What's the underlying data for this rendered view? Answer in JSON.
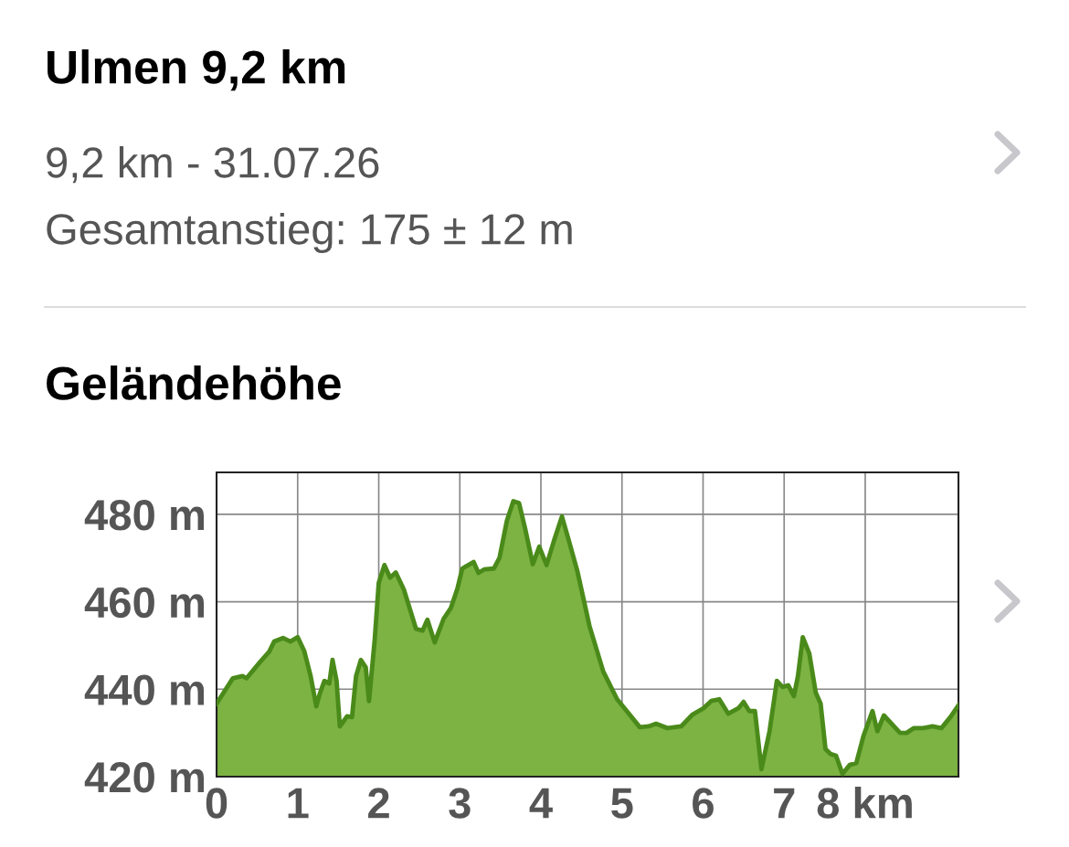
{
  "chart_data": {
    "type": "area",
    "title": "Ulmen 9,2 km",
    "subtitle": "9,2 km - 31.07.26",
    "annotations": [
      "Gesamtanstieg: 175 ± 12 m",
      "Geländehöhe"
    ],
    "x": [
      0,
      0.2,
      0.32,
      0.37,
      0.54,
      0.65,
      0.71,
      0.82,
      0.91,
      1.0,
      1.08,
      1.16,
      1.23,
      1.27,
      1.33,
      1.39,
      1.43,
      1.48,
      1.52,
      1.61,
      1.67,
      1.72,
      1.78,
      1.84,
      1.88,
      1.95,
      2.0,
      2.07,
      2.14,
      2.21,
      2.31,
      2.46,
      2.54,
      2.6,
      2.69,
      2.8,
      2.89,
      2.97,
      3.03,
      3.17,
      3.23,
      3.3,
      3.42,
      3.49,
      3.58,
      3.66,
      3.73,
      3.81,
      3.9,
      3.98,
      4.07,
      4.16,
      4.26,
      4.34,
      4.45,
      4.6,
      4.77,
      4.94,
      5.22,
      5.33,
      5.42,
      5.56,
      5.73,
      5.87,
      6.01,
      6.1,
      6.2,
      6.31,
      6.44,
      6.5,
      6.57,
      6.64,
      6.72,
      6.82,
      6.91,
      6.98,
      7.05,
      7.12,
      7.17,
      7.23,
      7.31,
      7.39,
      7.45,
      7.51,
      7.57,
      7.64,
      7.72,
      7.81,
      7.89,
      7.98,
      8.09,
      8.15,
      8.23,
      8.43,
      8.51,
      8.6,
      8.71,
      8.83,
      8.94,
      9.05,
      9.15
    ],
    "series": [
      {
        "color": "#7cb342",
        "values": [
          436.7,
          442.5,
          443,
          442.5,
          446.3,
          448.6,
          450.9,
          451.7,
          450.9,
          451.9,
          448.8,
          443,
          436.1,
          438.8,
          441.9,
          441.3,
          446.7,
          441.9,
          431.5,
          433.8,
          433.6,
          443,
          446.7,
          445,
          437.3,
          451.3,
          464.3,
          468.4,
          465.5,
          466.7,
          462.8,
          453.8,
          453.4,
          455.9,
          450.7,
          456.1,
          458.6,
          463,
          467.6,
          469.1,
          466.6,
          467.4,
          467.6,
          470.1,
          478.5,
          483,
          482.6,
          476.4,
          468.6,
          472.6,
          468.4,
          473.9,
          479.5,
          474.3,
          467,
          454.4,
          444,
          437.7,
          431.3,
          431.5,
          432.1,
          431.1,
          431.5,
          434.2,
          435.7,
          437.3,
          437.7,
          434.4,
          435.7,
          437.1,
          435,
          435,
          421.7,
          430.4,
          441.9,
          440.5,
          440.9,
          438.4,
          443,
          451.9,
          448.2,
          439.2,
          436.7,
          426.3,
          425.2,
          424.8,
          420.6,
          422.7,
          423.1,
          429.4,
          435,
          430.4,
          434,
          430,
          430,
          431.1,
          431.1,
          431.5,
          431.1,
          433.6,
          436.3
        ]
      }
    ],
    "xlim": [
      0,
      9.15
    ],
    "xticks": [
      0,
      1,
      2,
      3,
      4,
      5,
      6,
      7,
      {
        "value": 8,
        "label": "8 km"
      }
    ],
    "ylim": [
      420,
      489.6
    ],
    "yticks": [
      {
        "value": 420,
        "label": "420 m"
      },
      {
        "value": 440,
        "label": "440 m"
      },
      {
        "value": 460,
        "label": "460 m"
      },
      {
        "value": 480,
        "label": "480 m"
      }
    ],
    "grid": true,
    "legend": false
  }
}
